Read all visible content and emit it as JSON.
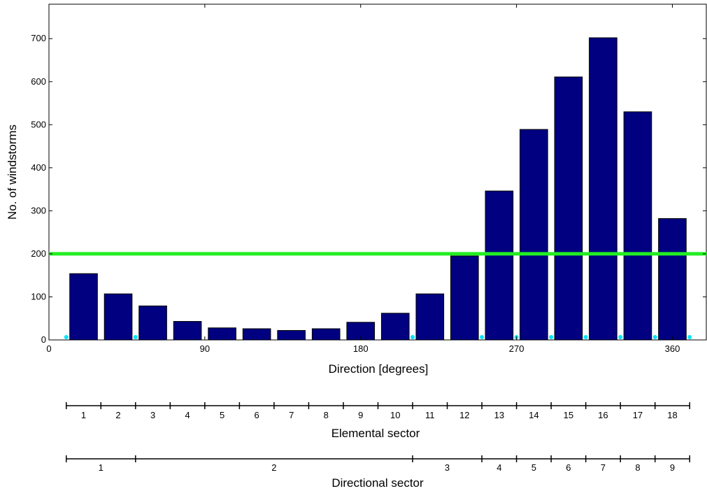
{
  "chart_data": {
    "type": "bar",
    "title": "",
    "xlabel": "Direction [degrees]",
    "ylabel": "No. of windstorms",
    "xlim": [
      0,
      380
    ],
    "ylim": [
      0,
      780
    ],
    "x_ticks": [
      0,
      90,
      180,
      270,
      360
    ],
    "y_ticks": [
      0,
      100,
      200,
      300,
      400,
      500,
      600,
      700
    ],
    "bar_centers": [
      20,
      40,
      60,
      80,
      100,
      120,
      140,
      160,
      180,
      200,
      220,
      240,
      260,
      280,
      300,
      320,
      340,
      360
    ],
    "bar_width": 16,
    "values": [
      154,
      107,
      79,
      43,
      28,
      26,
      22,
      26,
      41,
      62,
      107,
      195,
      346,
      489,
      611,
      702,
      530,
      282
    ],
    "bar_color": "#000080",
    "threshold": {
      "value": 200,
      "color": "#22ee22"
    },
    "markers": {
      "x": [
        10,
        50,
        210,
        250,
        270,
        290,
        310,
        330,
        350,
        370
      ],
      "color": "#00e5ff"
    },
    "grid": false
  },
  "elemental_sector": {
    "title": "Elemental sector",
    "boundaries": [
      10,
      30,
      50,
      70,
      90,
      110,
      130,
      150,
      170,
      190,
      210,
      230,
      250,
      270,
      290,
      310,
      330,
      350,
      370
    ],
    "labels": [
      "1",
      "2",
      "3",
      "4",
      "5",
      "6",
      "7",
      "8",
      "9",
      "10",
      "11",
      "12",
      "13",
      "14",
      "15",
      "16",
      "17",
      "18"
    ]
  },
  "directional_sector": {
    "title": "Directional sector",
    "boundaries": [
      10,
      50,
      210,
      250,
      270,
      290,
      310,
      330,
      350,
      370
    ],
    "labels": [
      "1",
      "2",
      "3",
      "4",
      "5",
      "6",
      "7",
      "8",
      "9"
    ]
  }
}
